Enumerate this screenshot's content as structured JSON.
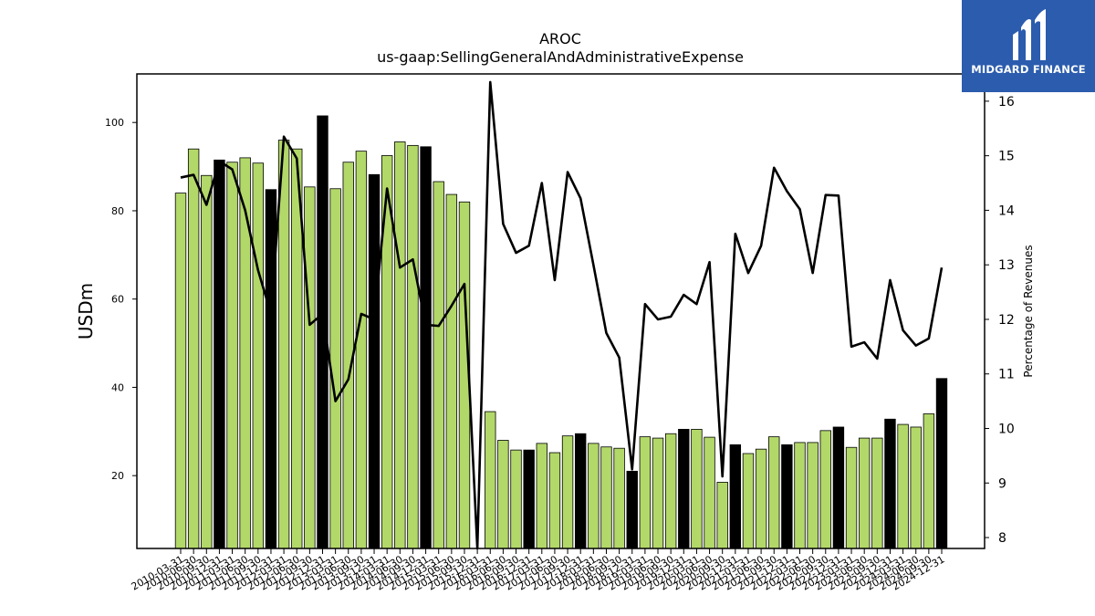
{
  "chart_data": {
    "type": "bar+line",
    "title": "AROC",
    "subtitle": "us-gaap:SellingGeneralAndAdministrativeExpense",
    "ylabel_left": "USDm",
    "ylabel_right": "Percentage of Revenues",
    "ylim_left": [
      3.5,
      111
    ],
    "ylim_right": [
      7.8,
      16.5
    ],
    "yticks_left": [
      20,
      40,
      60,
      80,
      100
    ],
    "yticks_right": [
      8,
      9,
      10,
      11,
      12,
      13,
      14,
      15,
      16
    ],
    "grid": false,
    "colors": {
      "bar": "#b3d86a",
      "bar_highlight": "#000000",
      "line": "#000000",
      "bar_edge": "#000000"
    },
    "x": [
      "2010-03-31",
      "2010-06-30",
      "2010-09-30",
      "2010-12-31",
      "2011-03-31",
      "2011-06-30",
      "2011-09-30",
      "2011-12-31",
      "2012-03-31",
      "2012-06-30",
      "2012-09-30",
      "2012-12-31",
      "2013-03-31",
      "2013-06-30",
      "2013-09-30",
      "2013-12-31",
      "2014-03-31",
      "2014-06-30",
      "2014-09-30",
      "2014-12-31",
      "2015-03-31",
      "2015-06-30",
      "2015-09-30",
      "2015-12-31",
      "2016-03-31",
      "2016-06-30",
      "2016-09-30",
      "2016-12-31",
      "2017-03-31",
      "2017-06-30",
      "2017-09-30",
      "2017-12-31",
      "2018-03-31",
      "2018-06-30",
      "2018-09-30",
      "2018-12-31",
      "2019-03-31",
      "2019-06-30",
      "2019-09-30",
      "2019-12-31",
      "2020-03-31",
      "2020-06-30",
      "2020-09-30",
      "2020-12-31",
      "2021-03-31",
      "2021-06-30",
      "2021-09-30",
      "2021-12-31",
      "2022-03-31",
      "2022-06-30",
      "2022-09-30",
      "2022-12-31",
      "2023-03-31",
      "2023-06-30",
      "2023-09-30",
      "2023-12-31",
      "2024-03-31",
      "2024-06-30",
      "2024-09-30",
      "2024-12-31"
    ],
    "x_tick_labels": [
      "2010-03-31",
      "2010-06-30",
      "2010-09-30",
      "2010-12-31",
      "2011-03-31",
      "2011-06-30",
      "2011-09-30",
      "2011-12-31",
      "2012-03-31",
      "2012-06-30",
      "2012-09-30",
      "2012-12-31",
      "2013-03-31",
      "2013-06-30",
      "2013-09-30",
      "2013-12-31",
      "2014-03-31",
      "2014-06-30",
      "2014-09-30",
      "2014-12-31",
      "2015-03-31",
      "2015-06-30",
      "2015-09-30",
      "2015-12-31",
      "2016-03-31",
      "2016-06-30",
      "2016-09-30",
      "2016-12-31",
      "2017-03-31",
      "2017-06-30",
      "2017-09-30",
      "2017-12-31",
      "2018-03-31",
      "2018-06-30",
      "2018-09-30",
      "2018-12-31",
      "2019-03-31",
      "2019-06-30",
      "2019-09-30",
      "2019-12-31",
      "2020-03-31",
      "2020-06-30",
      "2020-09-30",
      "2020-12-31",
      "2021-03-31",
      "2021-06-30",
      "2021-09-30",
      "2021-12-31",
      "2022-03-31",
      "2022-06-30",
      "2022-09-30",
      "2022-12-31",
      "2023-03-31",
      "2023-06-30",
      "2023-09-30",
      "2023-12-31",
      "2024-03-31",
      "2024-06-30",
      "2024-09-30",
      "2024-12-31"
    ],
    "series": [
      {
        "type": "bar",
        "axis": "left",
        "values": [
          84,
          94,
          88,
          91.5,
          91,
          92,
          90.8,
          84.8,
          96,
          94,
          85.4,
          101.5,
          85,
          91,
          93.5,
          88.2,
          92.5,
          95.6,
          94.8,
          94.5,
          86.6,
          83.7,
          82,
          null,
          34.5,
          28,
          25.8,
          25.8,
          27.3,
          25.2,
          29,
          29.5,
          27.3,
          26.5,
          26.2,
          21,
          28.8,
          28.5,
          29.5,
          30.5,
          30.5,
          28.7,
          18.5,
          27,
          25,
          26,
          28.8,
          27,
          27.5,
          27.5,
          30.2,
          31,
          26.4,
          28.5,
          28.5,
          32.8,
          31.6,
          31,
          34,
          42
        ],
        "highlight": [
          false,
          false,
          false,
          true,
          false,
          false,
          false,
          true,
          false,
          false,
          false,
          true,
          false,
          false,
          false,
          true,
          false,
          false,
          false,
          true,
          false,
          false,
          false,
          true,
          false,
          false,
          false,
          true,
          false,
          false,
          false,
          true,
          false,
          false,
          false,
          true,
          false,
          false,
          false,
          true,
          false,
          false,
          false,
          true,
          false,
          false,
          false,
          true,
          false,
          false,
          false,
          true,
          false,
          false,
          false,
          true,
          false,
          false,
          false,
          true
        ]
      },
      {
        "type": "line",
        "axis": "right",
        "values": [
          14.6,
          14.65,
          14.1,
          14.9,
          14.75,
          14,
          12.9,
          12.1,
          15.35,
          14.95,
          11.9,
          12.1,
          10.5,
          10.9,
          12.1,
          12,
          14.4,
          12.95,
          13.1,
          11.9,
          11.88,
          12.25,
          12.65,
          7.8,
          16.35,
          13.75,
          13.22,
          13.35,
          14.5,
          12.72,
          14.7,
          14.22,
          13,
          11.75,
          11.3,
          9.25,
          12.28,
          12,
          12.05,
          12.45,
          12.28,
          13.05,
          9.12,
          13.57,
          12.85,
          13.35,
          14.78,
          14.35,
          14.02,
          12.85,
          14.28,
          14.27,
          11.5,
          11.58,
          11.28,
          12.72,
          11.8,
          11.52,
          11.65,
          12.95
        ]
      }
    ]
  },
  "logo": {
    "text": "MIDGARD FINANCE",
    "icon": "midgard-logo-icon"
  }
}
